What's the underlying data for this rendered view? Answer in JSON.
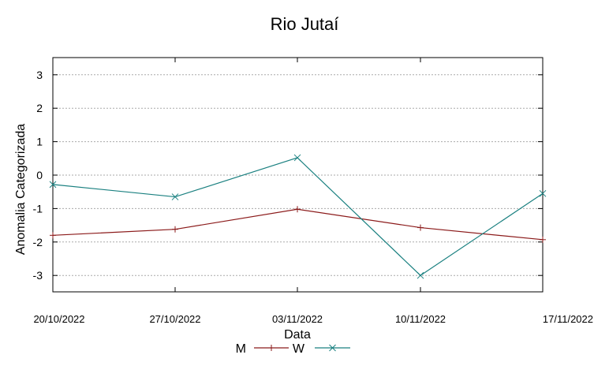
{
  "chart_data": {
    "type": "line",
    "title": "Rio Jutaí",
    "xlabel": "Data",
    "ylabel": "Anomalia Categorizada",
    "categories": [
      "20/10/2022",
      "27/10/2022",
      "03/11/2022",
      "10/11/2022",
      "17/11/2022"
    ],
    "yticks": [
      3,
      2,
      1,
      0,
      -1,
      -2,
      -3
    ],
    "ylim": [
      -3.5,
      3.5
    ],
    "grid": "horizontal dotted",
    "legend": "bottom-center",
    "series": [
      {
        "name": "M",
        "marker": "+",
        "color": "#8b1a1a",
        "values": [
          -1.8,
          -1.62,
          -1.02,
          -1.57,
          -1.93
        ]
      },
      {
        "name": "W",
        "marker": "x",
        "color": "#1a8080",
        "values": [
          -0.28,
          -0.65,
          0.52,
          -3.0,
          -0.55
        ]
      }
    ]
  }
}
